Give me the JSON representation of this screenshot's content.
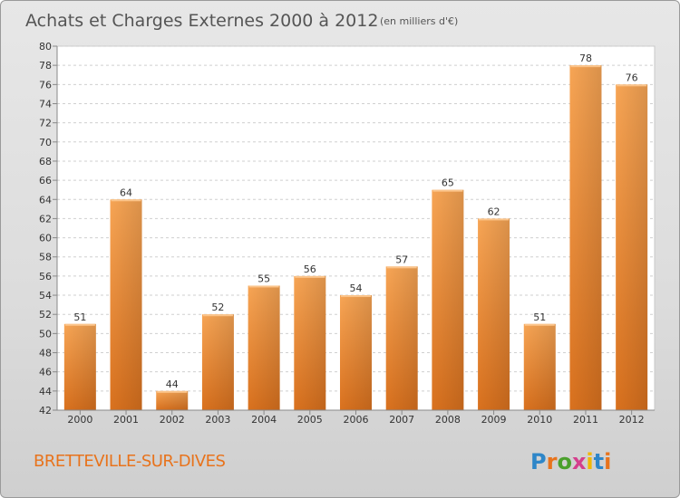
{
  "chart_data": {
    "type": "bar",
    "title": "Achats et Charges Externes 2000 à 2012",
    "subtitle": "(en milliers d'€)",
    "categories": [
      "2000",
      "2001",
      "2002",
      "2003",
      "2004",
      "2005",
      "2006",
      "2007",
      "2008",
      "2009",
      "2010",
      "2011",
      "2012"
    ],
    "values": [
      51,
      64,
      44,
      52,
      55,
      56,
      54,
      57,
      65,
      62,
      51,
      78,
      76
    ],
    "xlabel": "",
    "ylabel": "",
    "ylim": [
      42,
      80
    ],
    "ytick_step": 2,
    "grid": true,
    "legend": "none",
    "bar_color": "#f0902e"
  },
  "footer": {
    "place_name": "BRETTEVILLE-SUR-DIVES",
    "logo_text": "Proxiti",
    "logo_colors": [
      "#2e86c8",
      "#e8731c",
      "#4aa02c",
      "#d43f8d",
      "#f2b705",
      "#2e86c8",
      "#e8731c"
    ]
  }
}
